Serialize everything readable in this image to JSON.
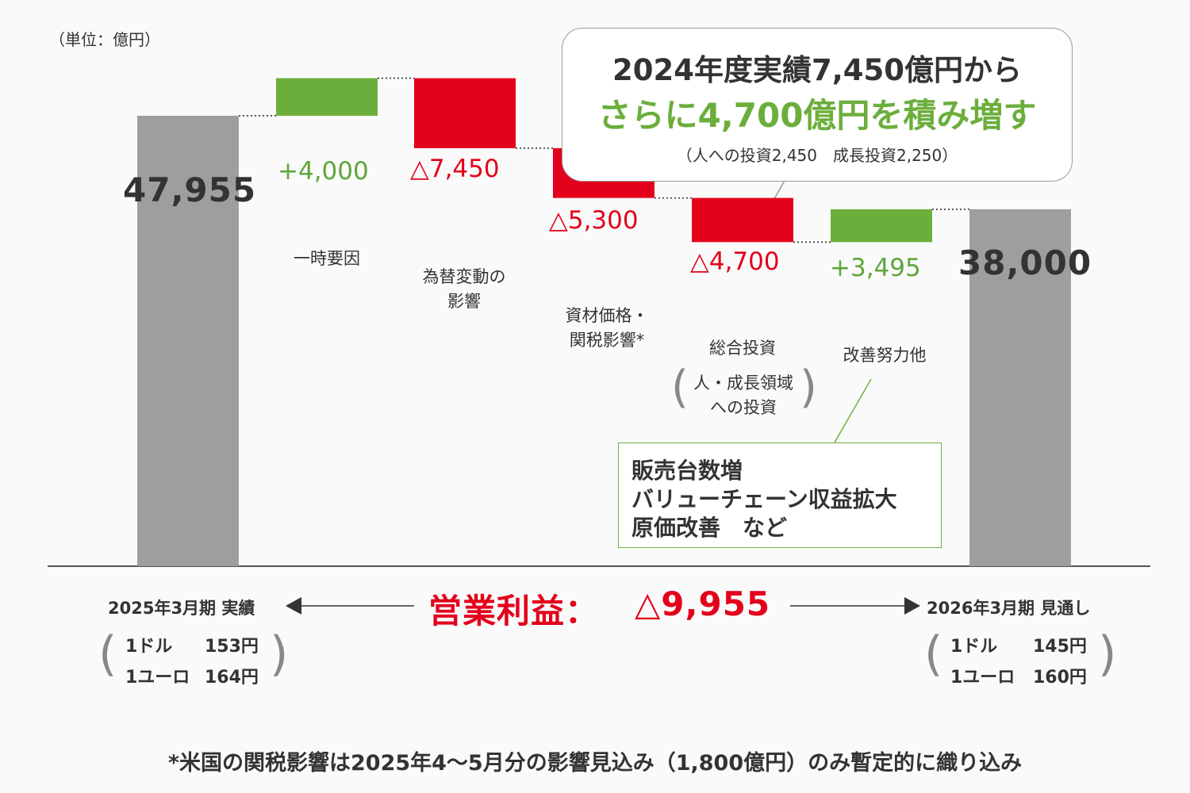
{
  "unit_label": "（単位：億円）",
  "colors": {
    "total": "#9e9e9e",
    "increase": "#6cae3c",
    "decrease": "#e3001b",
    "text": "#333333"
  },
  "chart_data": {
    "type": "bar",
    "subtype": "waterfall",
    "ylim": [
      0,
      58000
    ],
    "steps": [
      {
        "label": "2025年3月期 実績",
        "kind": "total",
        "value": 47955,
        "value_label": "47,955"
      },
      {
        "label": "一時要因",
        "kind": "increase",
        "value": 4000,
        "value_label": "+4,000"
      },
      {
        "label": "為替変動の影響",
        "kind": "decrease",
        "value": -7450,
        "value_label": "△7,450"
      },
      {
        "label": "資材価格・関税影響*",
        "kind": "decrease",
        "value": -5300,
        "value_label": "△5,300"
      },
      {
        "label": "総合投資（人・成長領域への投資）",
        "kind": "decrease",
        "value": -4700,
        "value_label": "△4,700"
      },
      {
        "label": "改善努力他",
        "kind": "increase",
        "value": 3495,
        "value_label": "+3,495"
      },
      {
        "label": "2026年3月期 見通し",
        "kind": "total",
        "value": 38000,
        "value_label": "38,000"
      }
    ]
  },
  "category_labels": {
    "one_time": [
      "一時要因"
    ],
    "fx": [
      "為替変動の",
      "影響"
    ],
    "materials": [
      "資材価格・",
      "関税影響*"
    ],
    "investment_main": "総合投資",
    "investment_sub": [
      "人・成長領域",
      "への投資"
    ],
    "improvement": [
      "改善努力他"
    ]
  },
  "callout": {
    "line1": "2024年度実績7,450億円から",
    "line2": "さらに4,700億円を積み増す",
    "line3": "（人への投資2,450　成長投資2,250）"
  },
  "improvement_note": [
    "販売台数増",
    "バリューチェーン収益拡大",
    "原価改善　など"
  ],
  "left_period": {
    "label": "2025年3月期 実績",
    "fx_usd_label": "1ドル",
    "fx_usd_value": "153円",
    "fx_eur_label": "1ユーロ",
    "fx_eur_value": "164円"
  },
  "right_period": {
    "label": "2026年3月期 見通し",
    "fx_usd_label": "1ドル",
    "fx_usd_value": "145円",
    "fx_eur_label": "1ユーロ",
    "fx_eur_value": "160円"
  },
  "operating_profit": {
    "label": "営業利益：",
    "value": "△9,955"
  },
  "footnote": "*米国の関税影響は2025年4～5月分の影響見込み（1,800億円）のみ暫定的に織り込み"
}
